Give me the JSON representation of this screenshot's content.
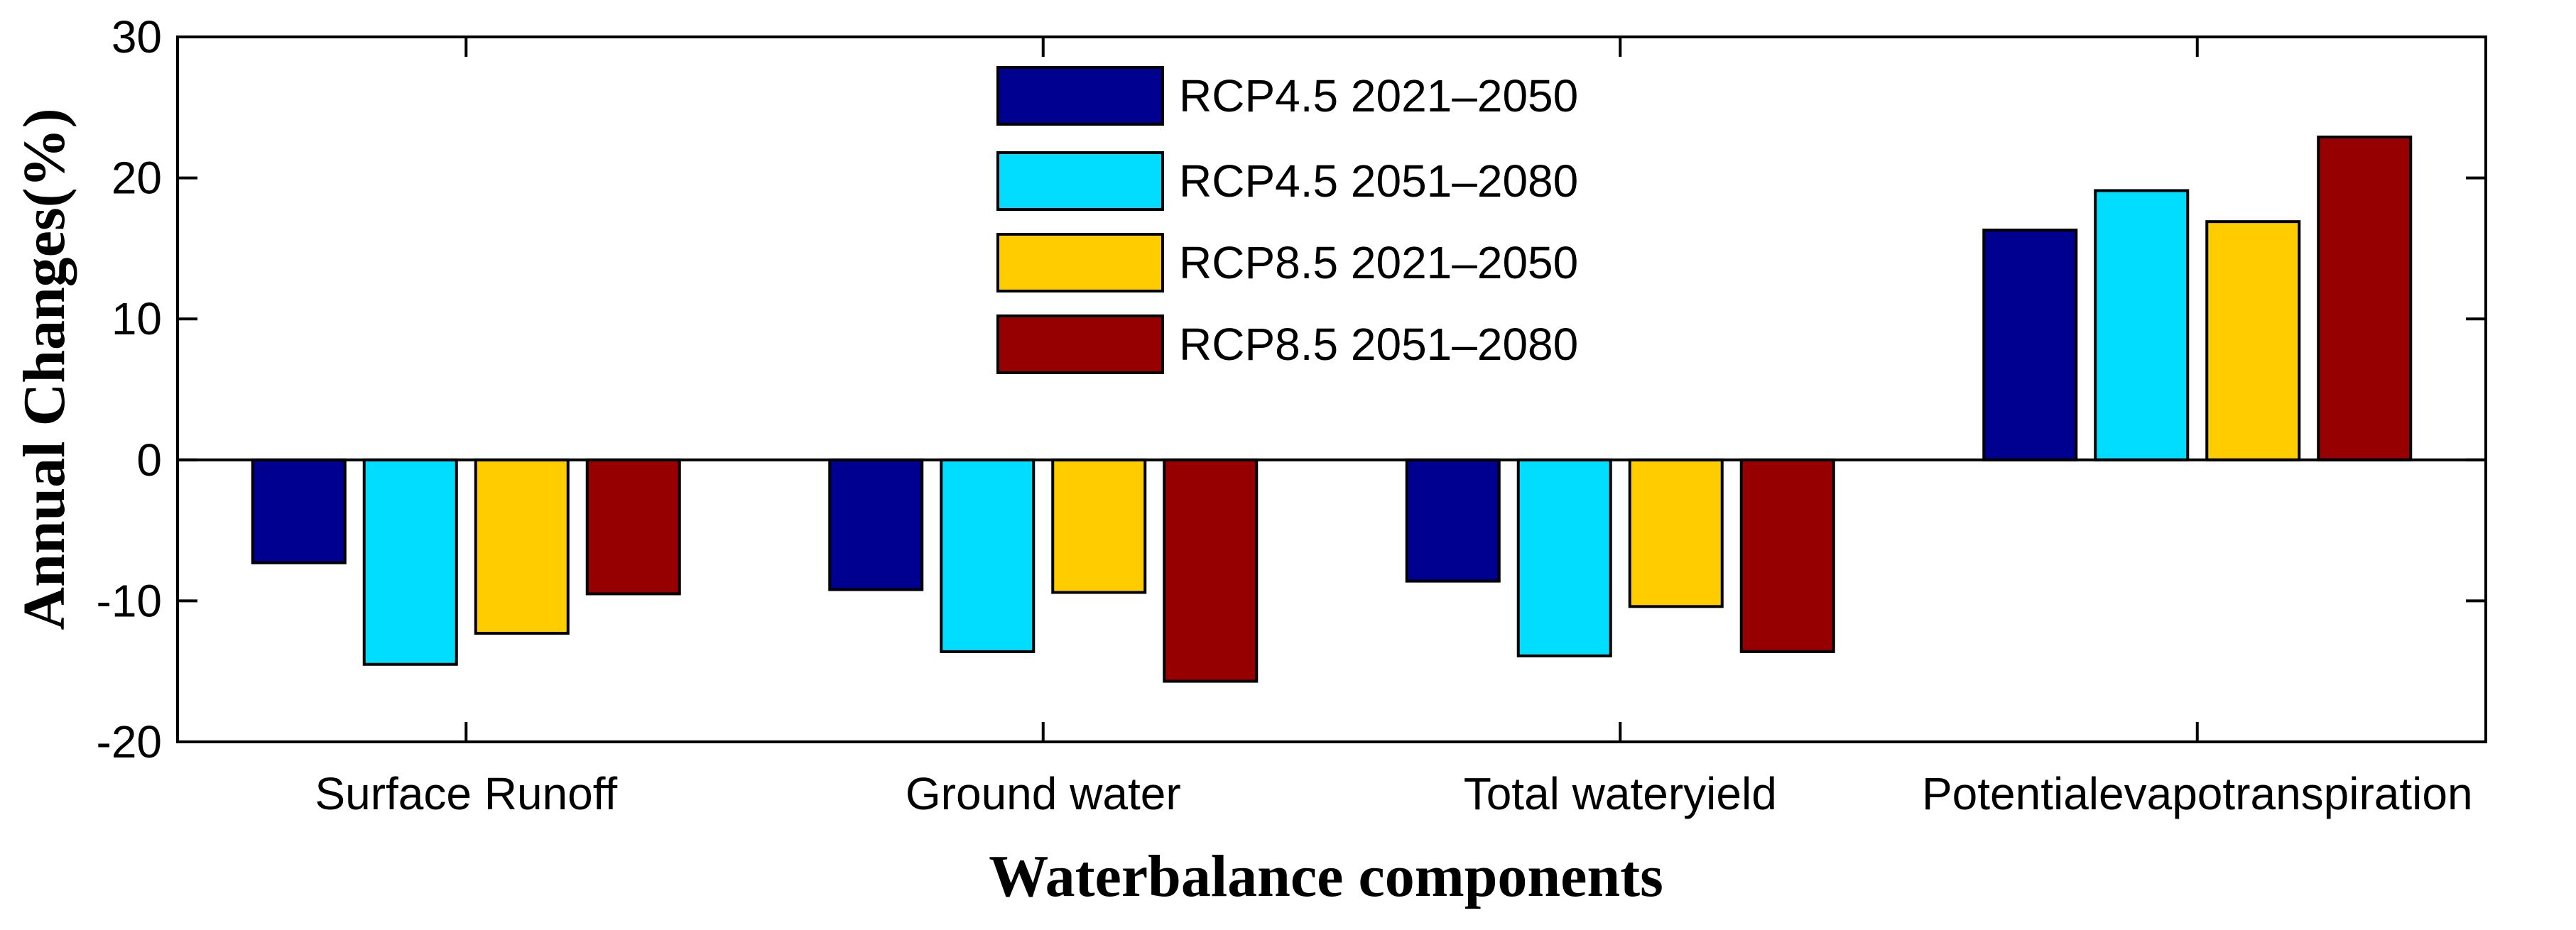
{
  "chart_data": {
    "type": "bar",
    "title": "",
    "xlabel": "Waterbalance components",
    "ylabel": "Annual Changes(%)",
    "ylim": [
      -20,
      30
    ],
    "yticks": [
      -20,
      -10,
      0,
      10,
      20,
      30
    ],
    "categories": [
      "Surface Runoff",
      "Ground water",
      "Total wateryield",
      "Potentialevapotranspiration"
    ],
    "series": [
      {
        "name": "RCP4.5 2021–2050",
        "color": "#000090",
        "values": [
          -7.3,
          -9.2,
          -8.6,
          16.3
        ]
      },
      {
        "name": "RCP4.5 2051–2080",
        "color": "#00DDFF",
        "values": [
          -14.5,
          -13.6,
          -13.9,
          19.1
        ]
      },
      {
        "name": "RCP8.5 2021–2050",
        "color": "#FFCC00",
        "values": [
          -12.3,
          -9.4,
          -10.4,
          16.9
        ]
      },
      {
        "name": "RCP8.5 2051–2080",
        "color": "#960000",
        "values": [
          -9.5,
          -15.7,
          -13.6,
          22.9
        ]
      }
    ],
    "legend_position": "top-center",
    "grid": false
  }
}
